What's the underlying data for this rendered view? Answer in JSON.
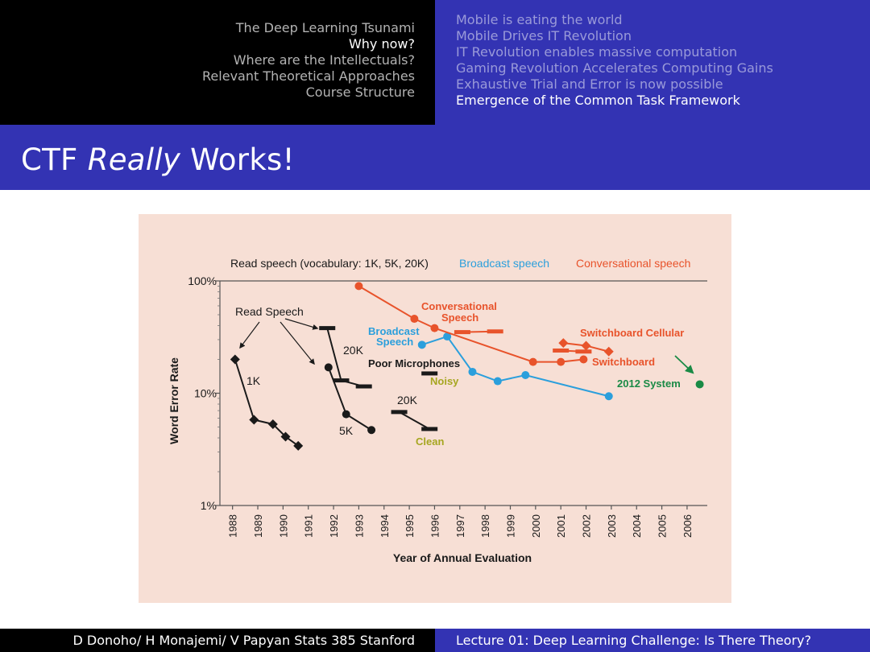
{
  "nav": {
    "sections": [
      "The Deep Learning Tsunami",
      "Why now?",
      "Where are the Intellectuals?",
      "Relevant Theoretical Approaches",
      "Course Structure"
    ],
    "subsections": [
      "Mobile is eating the world",
      "Mobile Drives IT Revolution",
      "IT Revolution enables massive computation",
      "Gaming Revolution Accelerates Computing Gains",
      "Exhaustive Trial and Error is now possible",
      "Emergence of the Common Task Framework"
    ]
  },
  "title": {
    "prefix": "CTF ",
    "emphasis": "Really",
    "suffix": " Works!"
  },
  "footer": {
    "left": "D Donoho/ H Monajemi/ V Papyan Stats 385 Stanford",
    "right": "Lecture 01: Deep Learning Challenge:  Is There Theory?"
  },
  "colors": {
    "read": "#1a1a1a",
    "broadcast": "#2b9fdc",
    "conversational": "#e8532b",
    "system": "#1a8a45",
    "noisy": "#a6a620",
    "clean": "#a6a620"
  },
  "chart_data": {
    "type": "line",
    "title": "",
    "xlabel": "Year of Annual Evaluation",
    "ylabel": "Word Error Rate",
    "yscale": "log",
    "ylim": [
      1,
      100
    ],
    "xlim": [
      1987.5,
      2006.8
    ],
    "yticks": [
      {
        "value": 100,
        "label": "100%"
      },
      {
        "value": 10,
        "label": "10%"
      },
      {
        "value": 1,
        "label": "1%"
      }
    ],
    "xticks": [
      "1988",
      "1989",
      "1990",
      "1991",
      "1992",
      "1993",
      "1994",
      "1995",
      "1996",
      "1997",
      "1998",
      "1999",
      "2000",
      "2001",
      "2002",
      "2003",
      "2004",
      "2005",
      "2006"
    ],
    "legend": [
      {
        "label": "Read speech (vocabulary: 1K, 5K, 20K)",
        "color": "#1a1a1a"
      },
      {
        "label": "Broadcast speech",
        "color": "#2b9fdc"
      },
      {
        "label": "Conversational speech",
        "color": "#e8532b"
      }
    ],
    "series": [
      {
        "name": "Read 1K",
        "color": "#1a1a1a",
        "marker": "diamond",
        "points": [
          [
            1988.1,
            20
          ],
          [
            1988.85,
            5.8
          ],
          [
            1989.6,
            5.3
          ],
          [
            1990.1,
            4.1
          ],
          [
            1990.6,
            3.4
          ]
        ]
      },
      {
        "name": "Read 5K",
        "color": "#1a1a1a",
        "marker": "circle",
        "points": [
          [
            1991.8,
            17
          ],
          [
            1992.5,
            6.5
          ],
          [
            1993.5,
            4.7
          ]
        ]
      },
      {
        "name": "Read 20K",
        "color": "#1a1a1a",
        "marker": "bar",
        "points": [
          [
            1991.75,
            38
          ],
          [
            1992.3,
            13
          ],
          [
            1993.2,
            11.5
          ]
        ]
      },
      {
        "name": "Poor Microphones",
        "color": "#1a1a1a",
        "marker": "bar",
        "points": [
          [
            1995.8,
            15
          ]
        ]
      },
      {
        "name": "Read 20K Clean",
        "color": "#1a1a1a",
        "marker": "bar",
        "points": [
          [
            1994.6,
            6.8
          ],
          [
            1995.8,
            4.8
          ]
        ]
      },
      {
        "name": "Broadcast speech",
        "color": "#2b9fdc",
        "marker": "circle",
        "points": [
          [
            1995.5,
            27
          ],
          [
            1996.5,
            32
          ],
          [
            1997.5,
            15.5
          ],
          [
            1998.5,
            12.8
          ],
          [
            1999.6,
            14.5
          ],
          [
            2002.9,
            9.4
          ]
        ]
      },
      {
        "name": "Conversational speech",
        "color": "#e8532b",
        "marker": "circle",
        "points": [
          [
            1993.0,
            90
          ],
          [
            1995.2,
            46
          ],
          [
            1996.0,
            38
          ],
          [
            1999.9,
            19
          ],
          [
            2001.0,
            19
          ],
          [
            2001.9,
            20
          ]
        ]
      },
      {
        "name": "Conversational speech (bars)",
        "color": "#e8532b",
        "marker": "bar",
        "points": [
          [
            1997.1,
            35
          ],
          [
            1998.4,
            35.5
          ]
        ]
      },
      {
        "name": "Switchboard Cellular",
        "color": "#e8532b",
        "marker": "diamond",
        "points": [
          [
            2001.1,
            28
          ],
          [
            2002.0,
            26.5
          ],
          [
            2002.9,
            23.5
          ]
        ]
      },
      {
        "name": "Switchboard (bars)",
        "color": "#e8532b",
        "marker": "bar",
        "points": [
          [
            2001.0,
            24
          ],
          [
            2001.9,
            23.5
          ]
        ]
      },
      {
        "name": "2012 System",
        "color": "#1a8a45",
        "marker": "circle",
        "points": [
          [
            2006.5,
            12
          ]
        ]
      }
    ],
    "annotations": [
      {
        "text": "Read Speech",
        "color": "#1a1a1a"
      },
      {
        "text": "1K",
        "color": "#1a1a1a"
      },
      {
        "text": "5K",
        "color": "#1a1a1a"
      },
      {
        "text": "20K",
        "color": "#1a1a1a"
      },
      {
        "text": "20K",
        "color": "#1a1a1a"
      },
      {
        "text": "Poor Microphones",
        "color": "#1a1a1a"
      },
      {
        "text": "Noisy",
        "color": "#a6a620"
      },
      {
        "text": "Clean",
        "color": "#a6a620"
      },
      {
        "text": "Broadcast",
        "color": "#2b9fdc"
      },
      {
        "text": "Speech",
        "color": "#2b9fdc"
      },
      {
        "text": "Conversational",
        "color": "#e8532b"
      },
      {
        "text": "Speech",
        "color": "#e8532b"
      },
      {
        "text": "Switchboard Cellular",
        "color": "#e8532b"
      },
      {
        "text": "Switchboard",
        "color": "#e8532b"
      },
      {
        "text": "2012 System",
        "color": "#1a8a45"
      }
    ]
  }
}
